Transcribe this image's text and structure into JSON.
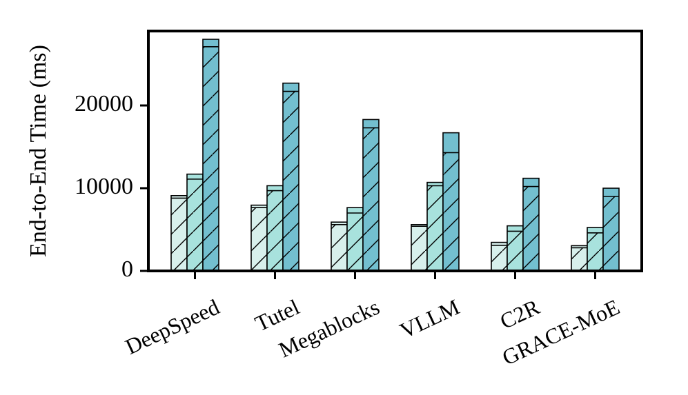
{
  "chart_data": {
    "type": "bar",
    "stacked_segments": true,
    "title": "",
    "xlabel": "",
    "ylabel": "End-to-End Time (ms)",
    "ylim": [
      0,
      29000
    ],
    "yticks": [
      {
        "value": 0,
        "label": "0"
      },
      {
        "value": 10000,
        "label": "10000"
      },
      {
        "value": 20000,
        "label": "20000"
      }
    ],
    "categories": [
      "DeepSpeed",
      "Tutel",
      "Megablocks",
      "VLLM",
      "C2R",
      "GRACE-MoE"
    ],
    "series": [
      {
        "color": "#d8f0ec",
        "base_values": [
          8800,
          7650,
          5600,
          5400,
          3100,
          2800
        ],
        "top_values": [
          9100,
          7950,
          5900,
          5600,
          3450,
          3050
        ]
      },
      {
        "color": "#a8e2dd",
        "base_values": [
          11100,
          9700,
          7000,
          10300,
          4800,
          4600
        ],
        "top_values": [
          11700,
          10300,
          7650,
          10700,
          5450,
          5250
        ]
      },
      {
        "color": "#73bfcf",
        "base_values": [
          27100,
          21700,
          17300,
          14300,
          10200,
          9000
        ],
        "top_values": [
          28000,
          22700,
          18300,
          16700,
          11200,
          10000
        ]
      }
    ],
    "grid": false,
    "legend": "none"
  }
}
